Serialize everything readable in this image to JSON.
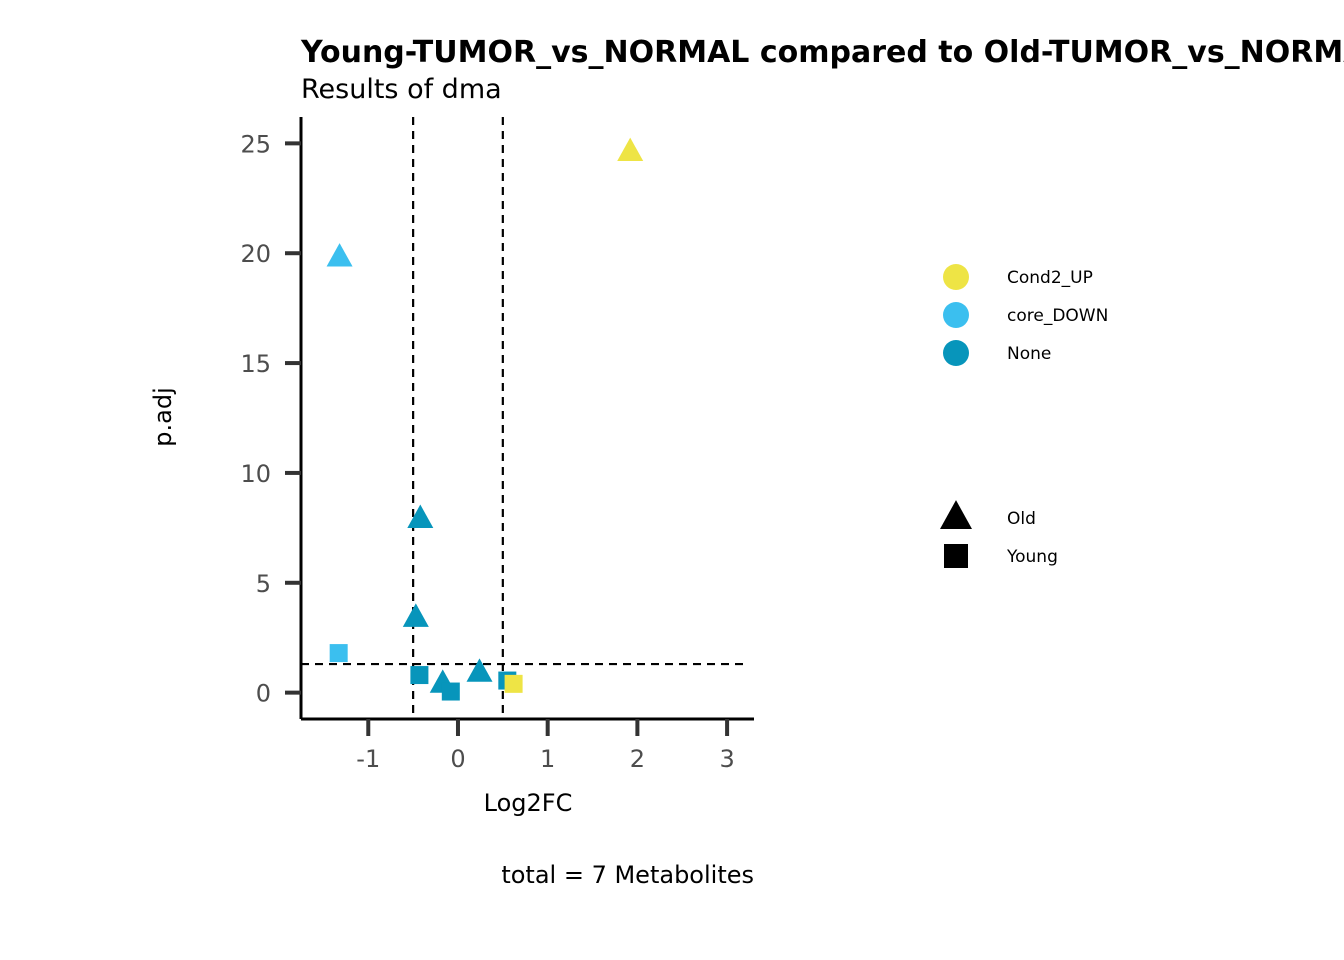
{
  "chart_data": {
    "type": "scatter",
    "title": "Young-TUMOR_vs_NORMAL compared to Old-TUMOR_vs_NORMAL",
    "subtitle": "Results of dma",
    "xlabel": "Log2FC",
    "ylabel": "p.adj",
    "caption": "total = 7 Metabolites",
    "xlim": [
      -1.75,
      3.3
    ],
    "ylim": [
      -1.2,
      26.2
    ],
    "xticks": [
      -1,
      0,
      1,
      2,
      3
    ],
    "xtick_labels": [
      "-1",
      "0",
      "1",
      "2",
      "3"
    ],
    "yticks": [
      0,
      5,
      10,
      15,
      20,
      25
    ],
    "ytick_labels": [
      "0",
      "5",
      "10",
      "15",
      "20",
      "25"
    ],
    "vlines": [
      -0.5,
      0.5
    ],
    "hline": 1.3,
    "grid": false,
    "legend_position": "right",
    "color_legend": [
      {
        "label": "Cond2_UP",
        "color": "#EEE445"
      },
      {
        "label": "core_DOWN",
        "color": "#3BBFEF"
      },
      {
        "label": "None",
        "color": "#0795BB"
      }
    ],
    "shape_legend": [
      {
        "label": "Old",
        "shape": "triangle"
      },
      {
        "label": "Young",
        "shape": "square"
      }
    ],
    "points": [
      {
        "x": 1.92,
        "y": 24.6,
        "group": "Cond2_UP",
        "shape": "triangle"
      },
      {
        "x": -1.32,
        "y": 19.8,
        "group": "core_DOWN",
        "shape": "triangle"
      },
      {
        "x": -0.42,
        "y": 7.9,
        "group": "None",
        "shape": "triangle"
      },
      {
        "x": -0.47,
        "y": 3.4,
        "group": "None",
        "shape": "triangle"
      },
      {
        "x": 0.24,
        "y": 0.9,
        "group": "None",
        "shape": "triangle"
      },
      {
        "x": -0.17,
        "y": 0.4,
        "group": "None",
        "shape": "triangle"
      },
      {
        "x": -1.33,
        "y": 1.8,
        "group": "core_DOWN",
        "shape": "square"
      },
      {
        "x": -0.43,
        "y": 0.8,
        "group": "None",
        "shape": "square"
      },
      {
        "x": -0.08,
        "y": 0.05,
        "group": "None",
        "shape": "square"
      },
      {
        "x": 0.55,
        "y": 0.55,
        "group": "None",
        "shape": "square"
      },
      {
        "x": 0.62,
        "y": 0.4,
        "group": "Cond2_UP",
        "shape": "square"
      }
    ]
  }
}
